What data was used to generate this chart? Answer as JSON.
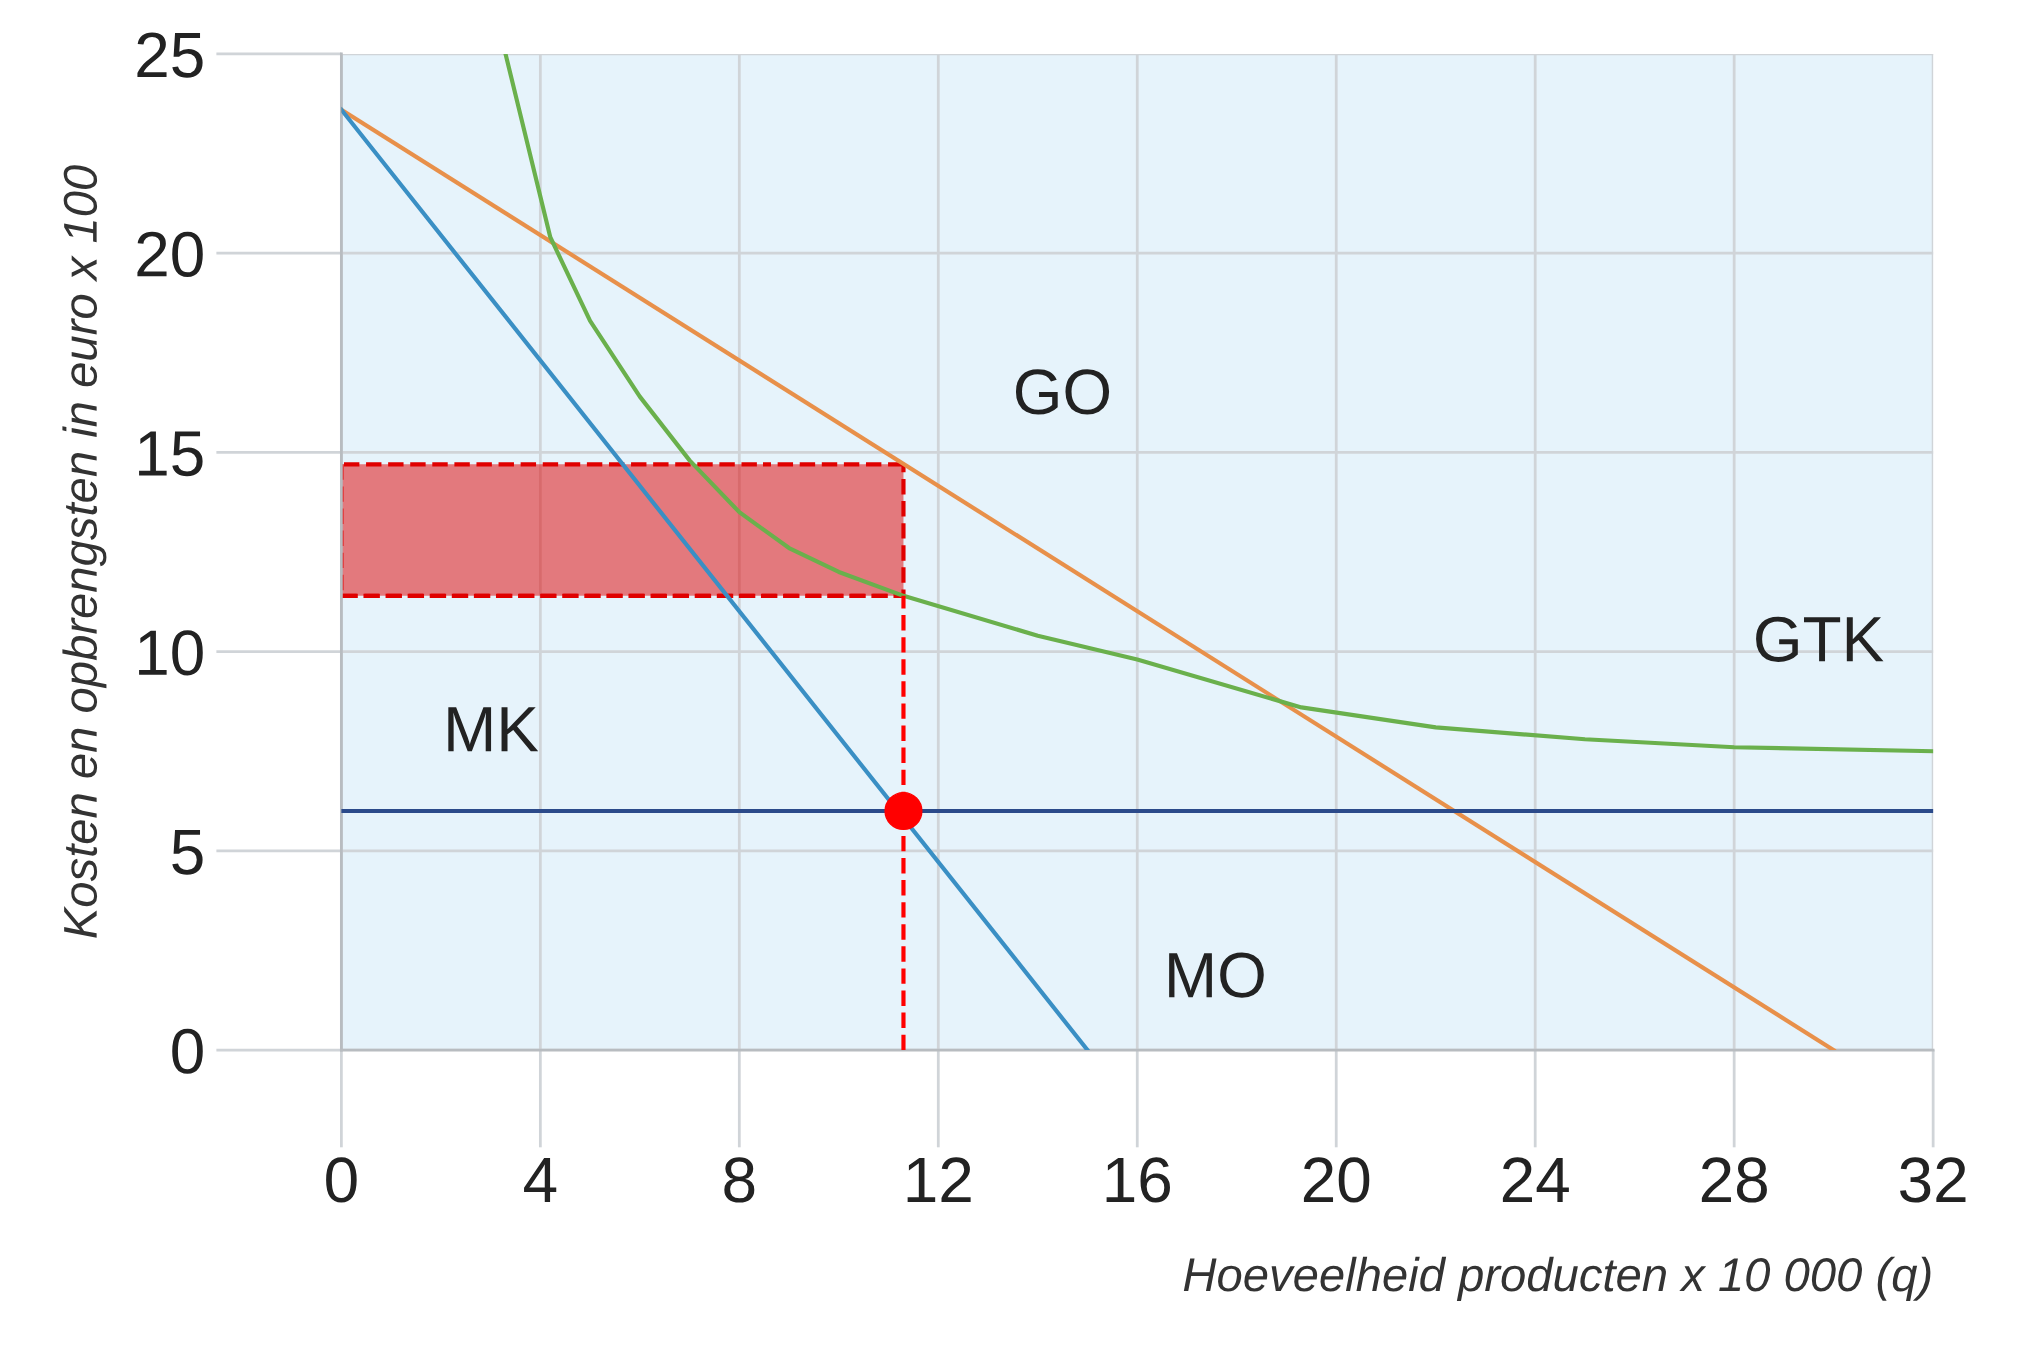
{
  "chart_data": {
    "type": "line",
    "xlabel": "Hoeveelheid producten x 10 000 (q)",
    "ylabel": "Kosten en opbrengsten in euro x 100",
    "xlim": [
      0,
      32
    ],
    "ylim": [
      0,
      25
    ],
    "xticks": [
      0,
      4,
      8,
      12,
      16,
      20,
      24,
      28,
      32
    ],
    "yticks": [
      0,
      5,
      10,
      15,
      20,
      25
    ],
    "grid": true,
    "legend": false,
    "series": [
      {
        "type": "line",
        "color": "#e00000",
        "x": [
          0,
          11.3
        ],
        "values": [
          11.4,
          11.4
        ],
        "lower": [
          11.4,
          11.4
        ],
        "upper": [
          14.7,
          14.7
        ],
        "line_style": "dashed"
      },
      {
        "name": "GO",
        "color": "#e8904a",
        "x": [
          0,
          30
        ],
        "values": [
          23.6,
          0
        ]
      },
      {
        "name": "MO",
        "color": "#3a8fc4",
        "x": [
          0,
          15
        ],
        "values": [
          23.6,
          0
        ]
      },
      {
        "name": "MK",
        "color": "#2b4a8a",
        "x": [
          0,
          32
        ],
        "values": [
          6,
          6
        ]
      },
      {
        "name": "GTK",
        "color": "#6ab04c",
        "x": [
          3.3,
          4.2,
          5,
          6,
          7,
          8,
          9,
          10,
          11.3,
          14,
          16,
          19.3,
          22,
          25,
          28,
          32
        ],
        "values": [
          25,
          20.4,
          18.3,
          16.4,
          14.8,
          13.5,
          12.6,
          12.0,
          11.4,
          10.4,
          9.8,
          8.6,
          8.1,
          7.8,
          7.6,
          7.5
        ]
      },
      {
        "type": "line",
        "color": "#ff0000",
        "line_style": "dashed",
        "x": [
          11.3,
          11.3
        ],
        "values": [
          0,
          11.4
        ]
      },
      {
        "type": "scatter",
        "color": "#ff0000",
        "marker": "circle",
        "x": [
          11.3
        ],
        "values": [
          6
        ]
      }
    ]
  }
}
